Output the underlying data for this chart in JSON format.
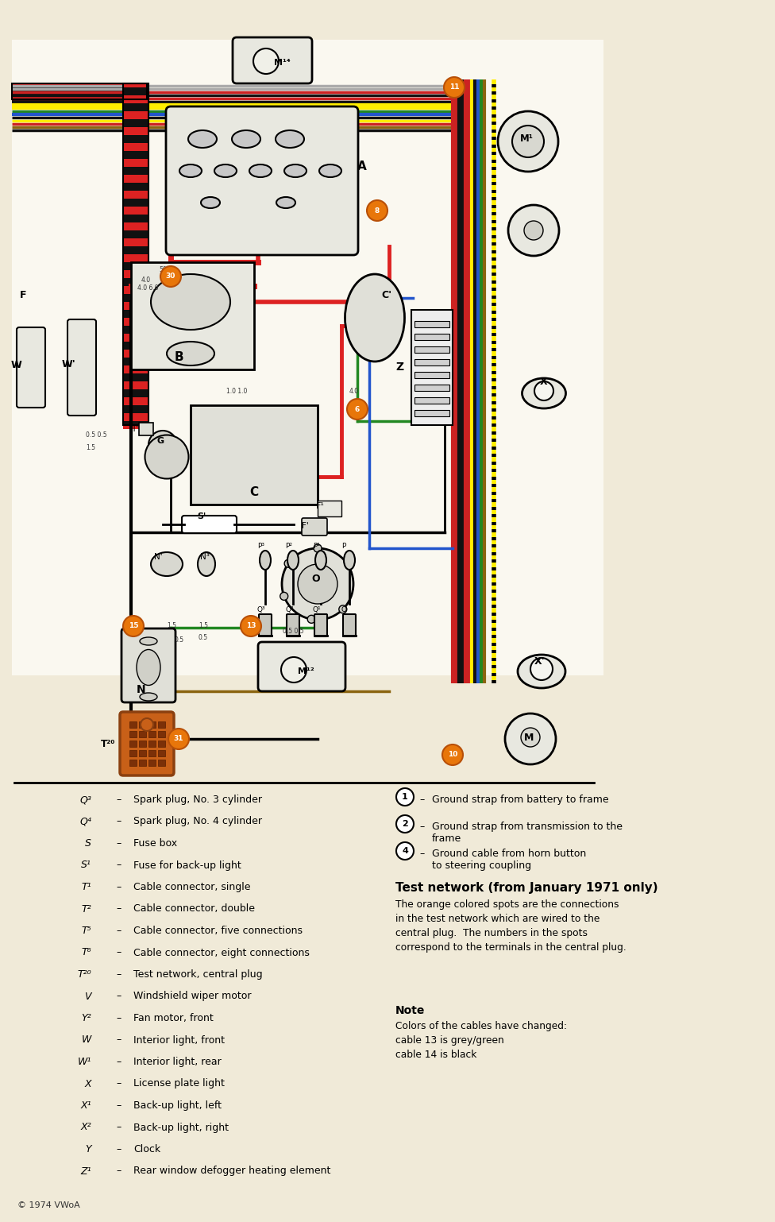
{
  "page_bg": "#f0ead8",
  "diagram_bg": "#faf8f0",
  "wire_colors": {
    "red": "#dd2222",
    "black": "#111111",
    "blue": "#2255cc",
    "green": "#228822",
    "yellow": "#ffee00",
    "brown": "#8B6410",
    "gray": "#999999",
    "white": "#ffffff",
    "orange": "#E87820",
    "orange_node": "#E8760A",
    "dark_gray": "#555555"
  },
  "legend_left": [
    [
      "Q³",
      "Spark plug, No. 3 cylinder"
    ],
    [
      "Q⁴",
      "Spark plug, No. 4 cylinder"
    ],
    [
      "S",
      "Fuse box"
    ],
    [
      "S¹",
      "Fuse for back-up light"
    ],
    [
      "T¹",
      "Cable connector, single"
    ],
    [
      "T²",
      "Cable connector, double"
    ],
    [
      "T⁵",
      "Cable connector, five connections"
    ],
    [
      "T⁶",
      "Cable connector, eight connections"
    ],
    [
      "T²⁰",
      "Test network, central plug"
    ],
    [
      "V",
      "Windshield wiper motor"
    ],
    [
      "Y²",
      "Fan motor, front"
    ],
    [
      "W",
      "Interior light, front"
    ],
    [
      "W¹",
      "Interior light, rear"
    ],
    [
      "X",
      "License plate light"
    ],
    [
      "X¹",
      "Back-up light, left"
    ],
    [
      "X²",
      "Back-up light, right"
    ],
    [
      "Y",
      "Clock"
    ],
    [
      "Z¹",
      "Rear window defogger heating element"
    ]
  ],
  "legend_right": [
    [
      "1",
      "Ground strap from battery to frame"
    ],
    [
      "2",
      "Ground strap from transmission to the\nframe"
    ],
    [
      "4",
      "Ground cable from horn button\nto steering coupling"
    ]
  ],
  "test_network_title": "Test network (from January 1971 only)",
  "test_network_body": "The orange colored spots are the connections\nin the test network which are wired to the\ncentral plug.  The numbers in the spots\ncorrespond to the terminals in the central plug.",
  "note_title": "Note",
  "note_body": "Colors of the cables have changed:\ncable 13 is grey/green\ncable 14 is black",
  "copyright": "© 1974 VWoA",
  "figsize": [
    9.76,
    15.38
  ],
  "dpi": 100
}
